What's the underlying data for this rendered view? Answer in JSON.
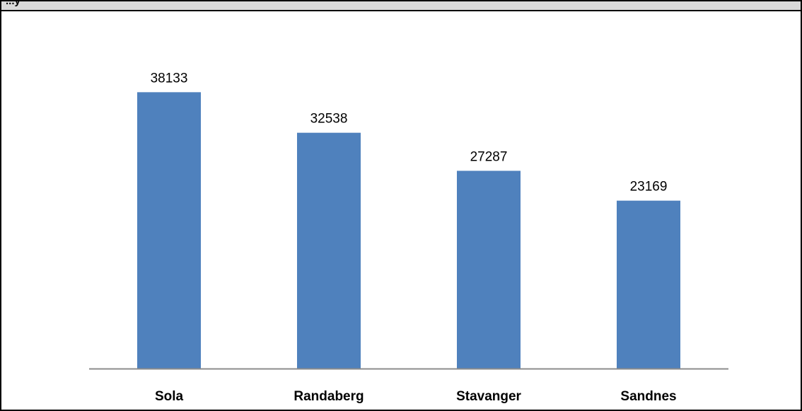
{
  "header": {
    "text": "...y"
  },
  "chart_data": {
    "type": "bar",
    "categories": [
      "Sola",
      "Randaberg",
      "Stavanger",
      "Sandnes"
    ],
    "values": [
      38133,
      32538,
      27287,
      23169
    ],
    "title": "",
    "xlabel": "",
    "ylabel": "",
    "ylim": [
      0,
      45000
    ],
    "grid": false,
    "legend": "none",
    "bar_color": "#4f81bd",
    "axis_color": "#8c8c8c"
  }
}
